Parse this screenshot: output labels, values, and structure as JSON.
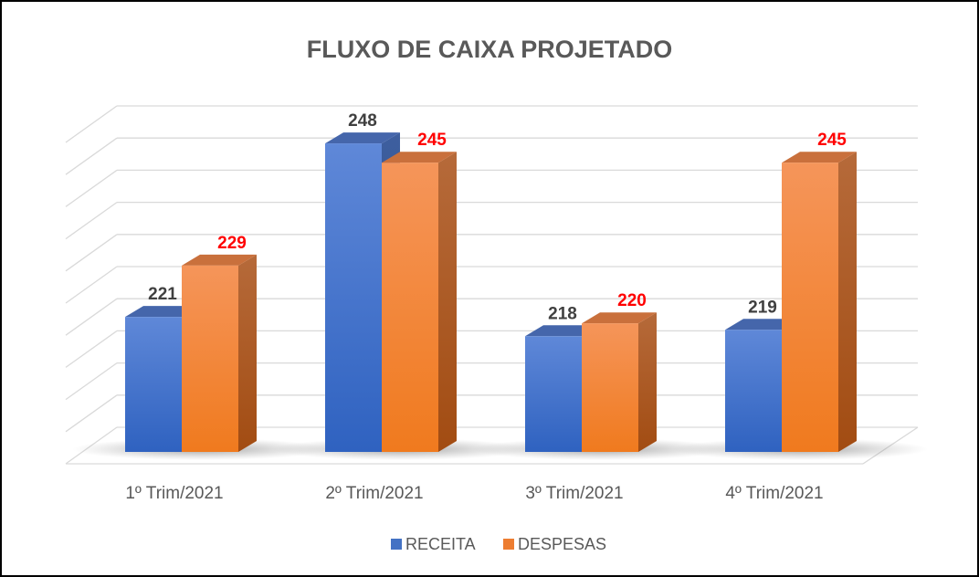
{
  "chart_data": {
    "type": "bar3d",
    "title": "FLUXO DE CAIXA PROJETADO",
    "categories": [
      "1º Trim/2021",
      "2º Trim/2021",
      "3º Trim/2021",
      "4º Trim/2021"
    ],
    "series": [
      {
        "name": "RECEITA",
        "color": "#4472c4",
        "label_color": "#404040",
        "values": [
          221,
          248,
          218,
          219
        ]
      },
      {
        "name": "DESPESAS",
        "color": "#ed7d31",
        "label_color": "#ff0000",
        "values": [
          229,
          245,
          220,
          245
        ]
      }
    ],
    "ylim": [
      200,
      250
    ],
    "yticks": [
      200,
      205,
      210,
      215,
      220,
      225,
      230,
      235,
      240,
      245,
      250
    ],
    "grid": true,
    "legend": "bottom"
  }
}
